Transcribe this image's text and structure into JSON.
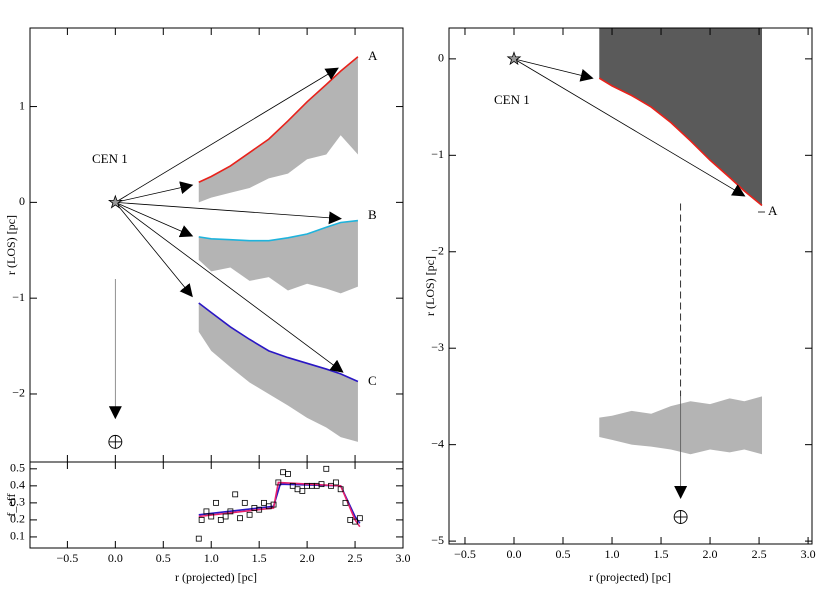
{
  "chart_data": [
    {
      "type": "line",
      "ylabel": "r (LOS) [pc]",
      "xlim": [
        -0.89,
        3.0
      ],
      "ylim": [
        -2.71,
        1.82
      ],
      "yticks": [
        {
          "value": -2,
          "label": "−2"
        },
        {
          "value": -1,
          "label": "−1"
        },
        0,
        1
      ],
      "bands": [
        {
          "color": "#b4b4b4",
          "x": [
            0.87,
            1.0,
            1.2,
            1.4,
            1.6,
            1.8,
            2.0,
            2.2,
            2.35,
            2.53
          ],
          "upper": [
            0.21,
            0.27,
            0.38,
            0.52,
            0.66,
            0.85,
            1.05,
            1.23,
            1.37,
            1.52
          ],
          "lower": [
            0.0,
            0.05,
            0.1,
            0.15,
            0.25,
            0.3,
            0.45,
            0.5,
            0.7,
            0.5
          ]
        },
        {
          "color": "#b4b4b4",
          "x": [
            0.87,
            1.0,
            1.2,
            1.4,
            1.6,
            1.8,
            2.0,
            2.2,
            2.35,
            2.53
          ],
          "upper": [
            -0.36,
            -0.38,
            -0.39,
            -0.4,
            -0.4,
            -0.37,
            -0.33,
            -0.26,
            -0.21,
            -0.19
          ],
          "lower": [
            -0.6,
            -0.72,
            -0.68,
            -0.82,
            -0.78,
            -0.92,
            -0.85,
            -0.9,
            -0.95,
            -0.88
          ]
        },
        {
          "color": "#b4b4b4",
          "x": [
            0.87,
            1.0,
            1.2,
            1.4,
            1.6,
            1.8,
            2.0,
            2.2,
            2.35,
            2.53
          ],
          "upper": [
            -1.05,
            -1.15,
            -1.3,
            -1.43,
            -1.55,
            -1.62,
            -1.68,
            -1.74,
            -1.79,
            -1.87
          ],
          "lower": [
            -1.35,
            -1.55,
            -1.72,
            -1.88,
            -2.0,
            -2.12,
            -2.25,
            -2.35,
            -2.45,
            -2.5
          ]
        }
      ],
      "lines": [
        {
          "color": "#e8221b",
          "x": [
            0.87,
            1.0,
            1.2,
            1.4,
            1.6,
            1.8,
            2.0,
            2.2,
            2.35,
            2.53
          ],
          "y": [
            0.21,
            0.27,
            0.38,
            0.52,
            0.66,
            0.85,
            1.05,
            1.23,
            1.37,
            1.52
          ]
        },
        {
          "color": "#1fb3dc",
          "x": [
            0.87,
            1.0,
            1.2,
            1.4,
            1.6,
            1.8,
            2.0,
            2.2,
            2.35,
            2.53
          ],
          "y": [
            -0.36,
            -0.38,
            -0.39,
            -0.4,
            -0.4,
            -0.37,
            -0.33,
            -0.26,
            -0.21,
            -0.19
          ]
        },
        {
          "color": "#2a17c4",
          "x": [
            0.87,
            1.0,
            1.2,
            1.4,
            1.6,
            1.8,
            2.0,
            2.2,
            2.35,
            2.53
          ],
          "y": [
            -1.05,
            -1.15,
            -1.3,
            -1.43,
            -1.55,
            -1.62,
            -1.68,
            -1.74,
            -1.79,
            -1.87
          ]
        }
      ],
      "arrows": [
        {
          "x": [
            0,
            0.8
          ],
          "y": [
            0,
            0.18
          ]
        },
        {
          "x": [
            0,
            2.32
          ],
          "y": [
            0,
            1.4
          ]
        },
        {
          "x": [
            0,
            0.8
          ],
          "y": [
            0,
            -0.35
          ]
        },
        {
          "x": [
            0,
            2.35
          ],
          "y": [
            0,
            -0.17
          ]
        },
        {
          "x": [
            0,
            0.8
          ],
          "y": [
            0,
            -0.98
          ]
        },
        {
          "x": [
            0,
            2.37
          ],
          "y": [
            0,
            -1.77
          ]
        },
        {
          "x": [
            0,
            0
          ],
          "y": [
            -0.8,
            -2.25
          ],
          "color": "#777777"
        }
      ],
      "source": {
        "x": 0,
        "y": 0
      },
      "observer": {
        "x": 0,
        "y": -2.5
      },
      "annotations": [
        "CEN 1",
        "A",
        "B",
        "C"
      ]
    },
    {
      "type": "scatter",
      "ylabel": "f_eff",
      "xlabel": "r (projected) [pc]",
      "xlim": [
        -0.89,
        3.0
      ],
      "ylim": [
        0.035,
        0.54
      ],
      "xticks": [
        {
          "value": -0.5,
          "label": "−0.5"
        },
        {
          "value": 0,
          "label": "0.0"
        },
        0.5,
        {
          "value": 1,
          "label": "1.0"
        },
        1.5,
        {
          "value": 2,
          "label": "2.0"
        },
        2.5,
        {
          "value": 3,
          "label": "3.0"
        }
      ],
      "yticks": [
        0.1,
        0.2,
        0.3,
        0.4,
        0.5
      ],
      "points": {
        "x": [
          0.87,
          0.9,
          0.95,
          1.0,
          1.05,
          1.1,
          1.15,
          1.2,
          1.25,
          1.3,
          1.35,
          1.4,
          1.45,
          1.5,
          1.55,
          1.6,
          1.65,
          1.7,
          1.75,
          1.8,
          1.85,
          1.9,
          1.95,
          2.0,
          2.05,
          2.1,
          2.15,
          2.2,
          2.25,
          2.3,
          2.35,
          2.4,
          2.45,
          2.5,
          2.55
        ],
        "y": [
          0.09,
          0.2,
          0.25,
          0.22,
          0.3,
          0.2,
          0.22,
          0.25,
          0.35,
          0.21,
          0.3,
          0.23,
          0.27,
          0.26,
          0.3,
          0.28,
          0.29,
          0.42,
          0.48,
          0.47,
          0.4,
          0.38,
          0.37,
          0.4,
          0.4,
          0.4,
          0.41,
          0.5,
          0.4,
          0.42,
          0.38,
          0.3,
          0.2,
          0.19,
          0.21
        ]
      },
      "lines": [
        {
          "color": "#2a17c4",
          "x": [
            0.87,
            1.65,
            1.72,
            2.35,
            2.5,
            2.55
          ],
          "y": [
            0.23,
            0.28,
            0.41,
            0.4,
            0.22,
            0.18
          ]
        },
        {
          "color": "#e8226b",
          "x": [
            0.87,
            1.65,
            1.7,
            2.35,
            2.5,
            2.55
          ],
          "y": [
            0.22,
            0.27,
            0.42,
            0.4,
            0.2,
            0.16
          ]
        }
      ]
    },
    {
      "type": "line",
      "ylabel": "r (LOS) [pc]",
      "xlabel": "r (projected) [pc]",
      "xlim": [
        -0.663,
        3.04
      ],
      "ylim": [
        -5.03,
        0.32
      ],
      "xticks": [
        {
          "value": -0.5,
          "label": "−0.5"
        },
        {
          "value": 0,
          "label": "0.0"
        },
        0.5,
        {
          "value": 1,
          "label": "1.0"
        },
        1.5,
        {
          "value": 2,
          "label": "2.0"
        },
        2.5,
        {
          "value": 3,
          "label": "3.0"
        }
      ],
      "yticks": [
        {
          "value": -5,
          "label": "−5"
        },
        {
          "value": -4,
          "label": "−4"
        },
        {
          "value": -3,
          "label": "−3"
        },
        {
          "value": -2,
          "label": "−2"
        },
        {
          "value": -1,
          "label": "−1"
        },
        0
      ],
      "bands": [
        {
          "color": "#5a5a5a",
          "x": [
            0.87,
            1.0,
            1.2,
            1.4,
            1.6,
            1.8,
            2.0,
            2.2,
            2.35,
            2.53
          ],
          "upper": [
            0.32,
            0.32,
            0.32,
            0.32,
            0.32,
            0.32,
            0.32,
            0.32,
            0.32,
            0.32
          ],
          "lower": [
            -0.2,
            -0.28,
            -0.38,
            -0.5,
            -0.66,
            -0.85,
            -1.05,
            -1.23,
            -1.37,
            -1.52
          ]
        },
        {
          "color": "#b4b4b4",
          "x": [
            0.87,
            1.0,
            1.2,
            1.4,
            1.6,
            1.8,
            2.0,
            2.2,
            2.35,
            2.53
          ],
          "upper": [
            -3.72,
            -3.7,
            -3.65,
            -3.68,
            -3.6,
            -3.55,
            -3.58,
            -3.52,
            -3.55,
            -3.5
          ],
          "lower": [
            -3.92,
            -3.95,
            -4.0,
            -4.02,
            -4.05,
            -4.1,
            -4.05,
            -4.08,
            -4.05,
            -4.1
          ]
        }
      ],
      "lines": [
        {
          "color": "#e8221b",
          "x": [
            0.87,
            1.0,
            1.2,
            1.4,
            1.6,
            1.8,
            2.0,
            2.2,
            2.35,
            2.53
          ],
          "y": [
            -0.2,
            -0.28,
            -0.38,
            -0.5,
            -0.66,
            -0.85,
            -1.05,
            -1.23,
            -1.37,
            -1.52
          ]
        }
      ],
      "arrows": [
        {
          "x": [
            0,
            0.8
          ],
          "y": [
            0,
            -0.2
          ]
        },
        {
          "x": [
            0,
            2.35
          ],
          "y": [
            0,
            -1.42
          ]
        },
        {
          "x": [
            1.7,
            1.7
          ],
          "y": [
            -1.5,
            -3.5
          ],
          "dashed": true,
          "head": false
        },
        {
          "x": [
            1.7,
            1.7
          ],
          "y": [
            -3.5,
            -4.55
          ],
          "color": "#555555"
        }
      ],
      "source": {
        "x": 0,
        "y": 0
      },
      "observer": {
        "x": 1.7,
        "y": -4.75
      },
      "annotations": [
        "CEN 1",
        "A"
      ]
    }
  ]
}
